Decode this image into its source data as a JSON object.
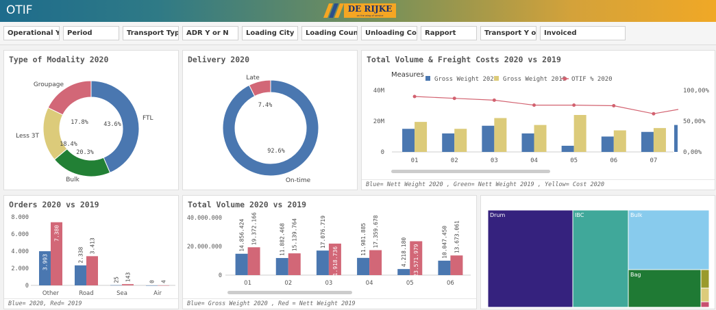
{
  "app": {
    "title": "OTIF",
    "logo_text": "DE RIJKE",
    "logo_sub": "on the wing of service"
  },
  "filters": [
    {
      "label": "Operational Year"
    },
    {
      "label": "Period"
    },
    {
      "label": "Transport Type"
    },
    {
      "label": "ADR Y or N"
    },
    {
      "label": "Loading City"
    },
    {
      "label": "Loading Country"
    },
    {
      "label": "Unloading Cou..."
    },
    {
      "label": "Rapport"
    },
    {
      "label": "Transport Y or N"
    },
    {
      "label": "Invoiced"
    }
  ],
  "colors": {
    "blue": "#4a77b0",
    "yellow": "#dccb7a",
    "pink": "#d26777",
    "green": "#228035",
    "red_line": "#d2616f"
  },
  "modality": {
    "title": "Type of Modality 2020",
    "chart_data": {
      "type": "pie",
      "slices": [
        {
          "label": "FTL",
          "value": 43.6,
          "text": "43.6%",
          "color": "#4a77b0"
        },
        {
          "label": "Bulk",
          "value": 20.3,
          "text": "20.3%",
          "color": "#228035"
        },
        {
          "label": "Less 3T",
          "value": 18.4,
          "text": "18.4%",
          "color": "#dccb7a"
        },
        {
          "label": "Groupage",
          "value": 17.8,
          "text": "17.8%",
          "color": "#d26777"
        }
      ]
    }
  },
  "delivery": {
    "title": "Delivery 2020",
    "chart_data": {
      "type": "pie",
      "slices": [
        {
          "label": "On-time",
          "value": 92.6,
          "text": "92.6%",
          "color": "#4a77b0"
        },
        {
          "label": "Late",
          "value": 7.4,
          "text": "7.4%",
          "color": "#d26777"
        }
      ]
    }
  },
  "volume_freight": {
    "title": "Total Volume & Freight Costs 2020 vs 2019",
    "legend_title": "Measures",
    "footnote": "Blue= Nett Weight 2020 , Green= Nett Weight 2019 , Yellow= Cost 2020",
    "chart_data": {
      "type": "bar",
      "categories": [
        "01",
        "02",
        "03",
        "04",
        "05",
        "06",
        "07"
      ],
      "series": [
        {
          "name": "Gross Weight 2020",
          "values": [
            15,
            12,
            17,
            12,
            4,
            10,
            13
          ],
          "color": "#4a77b0"
        },
        {
          "name": "Gross Weight 2019",
          "values": [
            19.5,
            15,
            22,
            17.5,
            24,
            14,
            15.5
          ],
          "color": "#dccb7a"
        },
        {
          "name": "OTIF % 2020",
          "values": [
            90,
            87,
            84,
            76,
            76,
            75,
            62
          ],
          "color": "#d2616f"
        }
      ],
      "y_ticks": [
        "40M",
        "20M",
        "0"
      ],
      "y2_ticks": [
        "100,00%",
        "50,00%",
        "0,00%"
      ],
      "ylim": [
        0,
        40
      ],
      "y2lim": [
        0,
        100
      ]
    }
  },
  "orders": {
    "title": "Orders 2020 vs 2019",
    "footnote": "Blue= 2020, Red= 2019",
    "chart_data": {
      "type": "bar",
      "categories": [
        "Other",
        "Road",
        "Sea",
        "Air"
      ],
      "series": [
        {
          "name": "2020",
          "values": [
            3993,
            2338,
            25,
            0
          ],
          "labels": [
            "3.993",
            "2.338",
            "25",
            "0"
          ],
          "color": "#4a77b0"
        },
        {
          "name": "2019",
          "values": [
            7380,
            3413,
            143,
            4
          ],
          "labels": [
            "7.380",
            "3.413",
            "143",
            "4"
          ],
          "color": "#d26777"
        }
      ],
      "y_ticks": [
        "8.000",
        "6.000",
        "4.000",
        "2.000",
        "0"
      ],
      "ylim": [
        0,
        8000
      ]
    }
  },
  "total_volume": {
    "title": "Total Volume 2020 vs 2019",
    "footnote": "Blue= Gross Weight 2020 , Red = Nett Weight 2019",
    "chart_data": {
      "type": "bar",
      "categories": [
        "01",
        "02",
        "03",
        "04",
        "05",
        "06"
      ],
      "series": [
        {
          "name": "Gross Weight 2020",
          "values": [
            14856424,
            11882468,
            17076719,
            11981885,
            4218180,
            10047450
          ],
          "labels": [
            "14.856.424",
            "11.882.468",
            "17.076.719",
            "11.981.885",
            "4.218.180",
            "10.047.450"
          ],
          "color": "#4a77b0"
        },
        {
          "name": "Nett Weight 2019",
          "values": [
            19372166,
            15139764,
            21918736,
            17359678,
            23571979,
            13673061
          ],
          "labels": [
            "19.372.166",
            "15.139.764",
            "21.918.736",
            "17.359.678",
            "23.571.979",
            "13.673.061"
          ],
          "color": "#d26777"
        }
      ],
      "y_ticks": [
        "40.000.000",
        "20.000.000",
        "0"
      ],
      "ylim": [
        0,
        40000000
      ]
    }
  },
  "treemap": {
    "chart_data": {
      "type": "treemap",
      "items": [
        {
          "label": "Drum",
          "color": "#35227e"
        },
        {
          "label": "IBC",
          "color": "#40a89a"
        },
        {
          "label": "Bulk",
          "color": "#88cbed"
        },
        {
          "label": "Bag",
          "color": "#1f7a34"
        },
        {
          "label": "",
          "color": "#9a9a2c"
        },
        {
          "label": "",
          "color": "#dccb7a"
        },
        {
          "label": "",
          "color": "#c85070"
        }
      ]
    }
  }
}
